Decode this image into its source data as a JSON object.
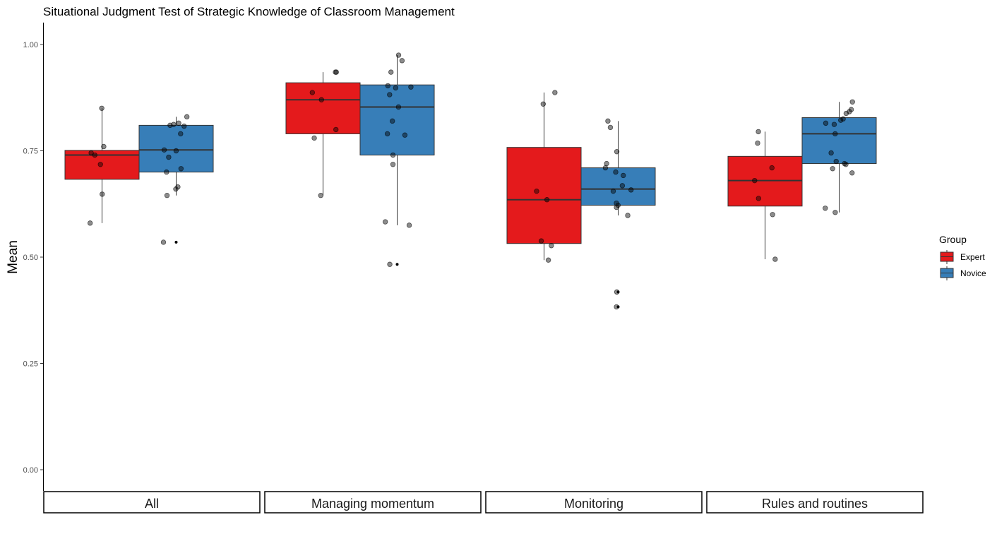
{
  "chart_data": {
    "type": "box",
    "title": "Situational Judgment Test of Strategic Knowledge of Classroom Management",
    "ylabel": "Mean",
    "xlabel": "",
    "ylim": [
      0,
      1.0
    ],
    "yticks": [
      "0.00",
      "0.25",
      "0.50",
      "0.75",
      "1.00"
    ],
    "ytick_values": [
      0,
      0.25,
      0.5,
      0.75,
      1.0
    ],
    "grid": false,
    "legend": {
      "title": "Group",
      "placement": "right",
      "entries": [
        {
          "label": "Expert",
          "color": "#E41A1C"
        },
        {
          "label": "Novice",
          "color": "#377EB8"
        }
      ]
    },
    "facets": [
      {
        "label": "All",
        "boxes": [
          {
            "group": "Expert",
            "q1": 0.683,
            "median": 0.74,
            "q3": 0.751,
            "whisker_low": 0.58,
            "whisker_high": 0.85,
            "points": [
              0.85,
              0.76,
              0.745,
              0.74,
              0.718,
              0.648,
              0.58
            ],
            "outliers": []
          },
          {
            "group": "Novice",
            "q1": 0.7,
            "median": 0.752,
            "q3": 0.81,
            "whisker_low": 0.645,
            "whisker_high": 0.83,
            "points": [
              0.83,
              0.815,
              0.812,
              0.81,
              0.808,
              0.79,
              0.752,
              0.75,
              0.735,
              0.708,
              0.7,
              0.665,
              0.66,
              0.645,
              0.535
            ],
            "outliers": [
              0.535
            ]
          }
        ]
      },
      {
        "label": "Managing momentum",
        "boxes": [
          {
            "group": "Expert",
            "q1": 0.79,
            "median": 0.87,
            "q3": 0.91,
            "whisker_low": 0.645,
            "whisker_high": 0.935,
            "points": [
              0.935,
              0.935,
              0.887,
              0.87,
              0.8,
              0.78,
              0.645
            ],
            "outliers": []
          },
          {
            "group": "Novice",
            "q1": 0.74,
            "median": 0.853,
            "q3": 0.905,
            "whisker_low": 0.575,
            "whisker_high": 0.975,
            "points": [
              0.975,
              0.962,
              0.935,
              0.903,
              0.9,
              0.898,
              0.882,
              0.853,
              0.82,
              0.79,
              0.787,
              0.74,
              0.718,
              0.583,
              0.575,
              0.483
            ],
            "outliers": [
              0.483
            ]
          }
        ]
      },
      {
        "label": "Monitoring",
        "boxes": [
          {
            "group": "Expert",
            "q1": 0.532,
            "median": 0.635,
            "q3": 0.758,
            "whisker_low": 0.493,
            "whisker_high": 0.887,
            "points": [
              0.887,
              0.86,
              0.655,
              0.635,
              0.538,
              0.527,
              0.493
            ],
            "outliers": []
          },
          {
            "group": "Novice",
            "q1": 0.622,
            "median": 0.66,
            "q3": 0.71,
            "whisker_low": 0.598,
            "whisker_high": 0.82,
            "points": [
              0.82,
              0.805,
              0.748,
              0.72,
              0.71,
              0.7,
              0.692,
              0.668,
              0.658,
              0.655,
              0.627,
              0.622,
              0.617,
              0.598,
              0.418,
              0.383
            ],
            "outliers": [
              0.418,
              0.383
            ]
          }
        ]
      },
      {
        "label": "Rules and routines",
        "boxes": [
          {
            "group": "Expert",
            "q1": 0.62,
            "median": 0.68,
            "q3": 0.737,
            "whisker_low": 0.495,
            "whisker_high": 0.795,
            "points": [
              0.795,
              0.768,
              0.71,
              0.68,
              0.638,
              0.6,
              0.495
            ],
            "outliers": []
          },
          {
            "group": "Novice",
            "q1": 0.72,
            "median": 0.79,
            "q3": 0.828,
            "whisker_low": 0.605,
            "whisker_high": 0.865,
            "points": [
              0.865,
              0.847,
              0.842,
              0.838,
              0.825,
              0.822,
              0.815,
              0.812,
              0.79,
              0.745,
              0.725,
              0.72,
              0.718,
              0.708,
              0.698,
              0.615,
              0.605
            ],
            "outliers": []
          }
        ]
      }
    ]
  }
}
